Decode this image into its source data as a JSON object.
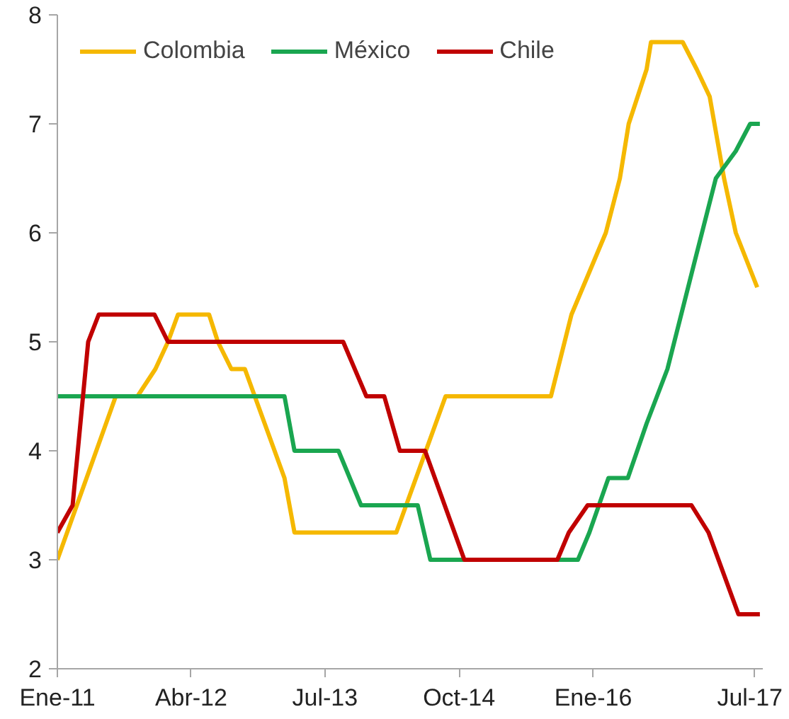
{
  "chart_data": {
    "type": "line",
    "x": [
      "2011-01-01",
      "2011-07-19",
      "2011-10-01",
      "2011-12-01",
      "2012-01-13",
      "2012-02-16",
      "2012-06-01",
      "2012-07-01",
      "2012-08-16",
      "2012-10-01",
      "2013-02-13",
      "2013-03-19",
      "2014-03-01",
      "2014-08-16",
      "2015-08-10",
      "2015-10-19",
      "2016-02-13",
      "2016-04-01",
      "2016-05-01",
      "2016-07-01",
      "2016-07-16",
      "2016-11-01",
      "2016-12-19",
      "2017-02-01",
      "2017-03-22",
      "2017-05-01",
      "2017-07-13"
    ],
    "series": [
      {
        "name": "Colombia",
        "color": "#f5b800",
        "values": [
          3.0,
          4.5,
          4.5,
          4.75,
          5.0,
          5.25,
          5.25,
          5.0,
          4.75,
          4.75,
          3.75,
          3.25,
          3.25,
          4.5,
          4.5,
          5.25,
          6.0,
          6.5,
          7.0,
          7.5,
          7.75,
          7.75,
          7.5,
          7.25,
          6.5,
          6.0,
          5.5
        ]
      },
      {
        "name": "México",
        "color": "#1aa650",
        "x": [
          "2011-01-01",
          "2013-02-13",
          "2013-03-19",
          "2013-08-16",
          "2013-11-01",
          "2014-05-13",
          "2014-06-25",
          "2015-11-10",
          "2015-12-19",
          "2016-02-22",
          "2016-04-28",
          "2016-07-01",
          "2016-09-10",
          "2016-12-13",
          "2017-02-22",
          "2017-05-01",
          "2017-06-19",
          "2017-07-22"
        ],
        "values": [
          4.5,
          4.5,
          4.0,
          4.0,
          3.5,
          3.5,
          3.0,
          3.0,
          3.25,
          3.75,
          3.75,
          4.25,
          4.75,
          5.75,
          6.5,
          6.75,
          7.0,
          7.0
        ]
      },
      {
        "name": "Chile",
        "color": "#c00000",
        "x": [
          "2011-01-01",
          "2011-02-22",
          "2011-04-16",
          "2011-05-22",
          "2011-11-28",
          "2012-01-13",
          "2013-09-01",
          "2013-11-19",
          "2014-01-19",
          "2014-03-13",
          "2014-06-07",
          "2014-10-19",
          "2015-09-01",
          "2015-10-10",
          "2015-12-13",
          "2016-12-01",
          "2017-01-28",
          "2017-05-10",
          "2017-07-22"
        ],
        "values": [
          3.25,
          3.5,
          5.0,
          5.25,
          5.25,
          5.0,
          5.0,
          4.5,
          4.5,
          4.0,
          4.0,
          3.0,
          3.0,
          3.25,
          3.5,
          3.5,
          3.25,
          2.5,
          2.5
        ]
      }
    ],
    "xlim": [
      "2011-01-01",
      "2017-08-01"
    ],
    "xticks": [
      {
        "value": "2011-01",
        "label": "Ene-11"
      },
      {
        "value": "2012-04",
        "label": "Abr-12"
      },
      {
        "value": "2013-07",
        "label": "Jul-13"
      },
      {
        "value": "2014-10",
        "label": "Oct-14"
      },
      {
        "value": "2016-01",
        "label": "Ene-16"
      },
      {
        "value": "2017-07",
        "label": "Jul-17"
      }
    ],
    "ylim": [
      2,
      8
    ],
    "yticks": [
      2,
      3,
      4,
      5,
      6,
      7,
      8
    ],
    "grid": false,
    "legend": "top left",
    "line_style": "solid",
    "marker": "none"
  }
}
